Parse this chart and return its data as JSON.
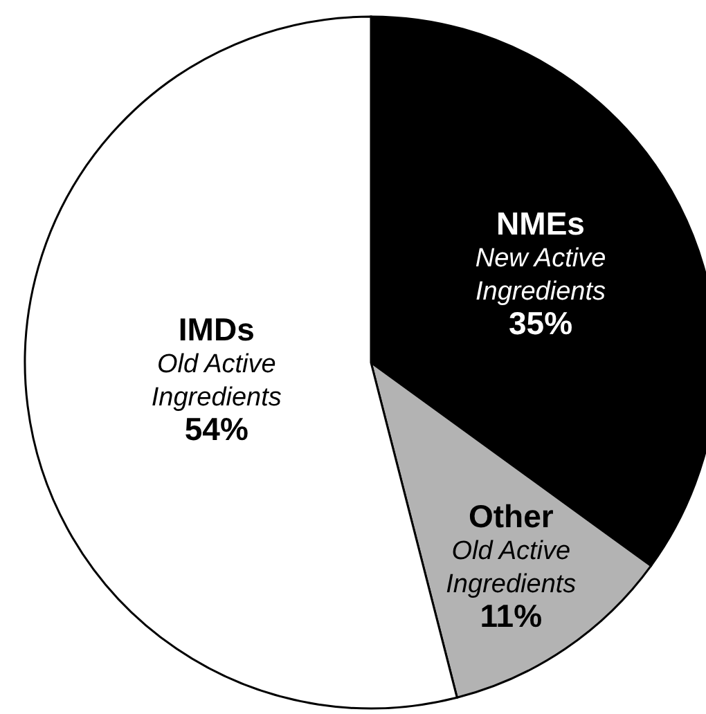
{
  "chart_data": {
    "type": "pie",
    "categories": [
      "NMEs",
      "Other",
      "IMDs"
    ],
    "values": [
      35,
      11,
      54
    ],
    "colors": [
      "#000000",
      "#b3b3b3",
      "#ffffff"
    ],
    "value_labels": [
      "35%",
      "11%",
      "54%"
    ],
    "annotations": [
      "New Active Ingredients",
      "Old Active Ingredients",
      "Old Active Ingredients"
    ]
  }
}
